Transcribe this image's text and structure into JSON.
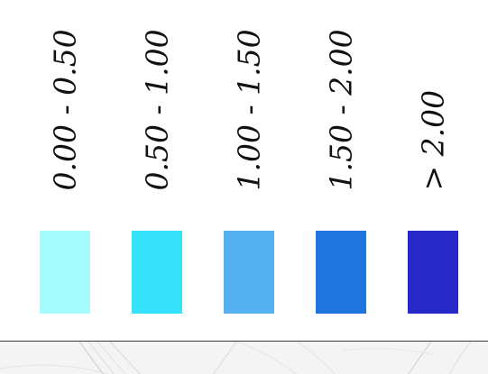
{
  "legend": {
    "items": [
      {
        "label": "0.00 - 0.50",
        "color": "#a6fcfc"
      },
      {
        "label": "0.50 - 1.00",
        "color": "#36e1fb"
      },
      {
        "label": "1.00 - 1.50",
        "color": "#56b1f0"
      },
      {
        "label": "1.50 - 2.00",
        "color": "#2074de"
      },
      {
        "label": "> 2.00",
        "color": "#2729c9"
      }
    ]
  }
}
